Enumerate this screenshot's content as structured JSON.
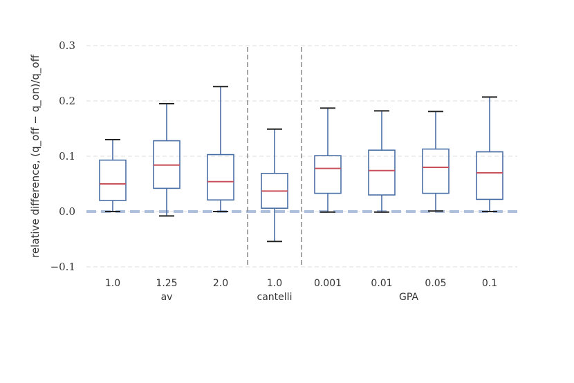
{
  "chart_data": {
    "type": "box",
    "title": "",
    "ylabel": "relative difference, (q_off − q_on)/q_off",
    "ylim": [
      -0.1,
      0.3
    ],
    "yticks": [
      -0.1,
      0.0,
      0.1,
      0.2,
      0.3
    ],
    "ytick_labels": [
      "−0.1",
      "0.0",
      "0.1",
      "0.2",
      "0.3"
    ],
    "grid": "horizontal-dashed",
    "reference_line": 0.0,
    "groups": [
      {
        "name": "av",
        "categories": [
          "1.0",
          "1.25",
          "2.0"
        ]
      },
      {
        "name": "cantelli",
        "categories": [
          "1.0"
        ]
      },
      {
        "name": "GPA",
        "categories": [
          "0.001",
          "0.01",
          "0.05",
          "0.1"
        ]
      }
    ],
    "boxes": [
      {
        "group": "av",
        "category": "1.0",
        "whisker_low": 0.0,
        "q1": 0.02,
        "median": 0.05,
        "q3": 0.093,
        "whisker_high": 0.13
      },
      {
        "group": "av",
        "category": "1.25",
        "whisker_low": -0.008,
        "q1": 0.042,
        "median": 0.084,
        "q3": 0.128,
        "whisker_high": 0.195
      },
      {
        "group": "av",
        "category": "2.0",
        "whisker_low": 0.0,
        "q1": 0.021,
        "median": 0.054,
        "q3": 0.103,
        "whisker_high": 0.226
      },
      {
        "group": "cantelli",
        "category": "1.0",
        "whisker_low": -0.054,
        "q1": 0.006,
        "median": 0.037,
        "q3": 0.069,
        "whisker_high": 0.149
      },
      {
        "group": "GPA",
        "category": "0.001",
        "whisker_low": -0.001,
        "q1": 0.033,
        "median": 0.078,
        "q3": 0.101,
        "whisker_high": 0.187
      },
      {
        "group": "GPA",
        "category": "0.01",
        "whisker_low": -0.001,
        "q1": 0.03,
        "median": 0.074,
        "q3": 0.111,
        "whisker_high": 0.182
      },
      {
        "group": "GPA",
        "category": "0.05",
        "whisker_low": 0.001,
        "q1": 0.033,
        "median": 0.08,
        "q3": 0.113,
        "whisker_high": 0.181
      },
      {
        "group": "GPA",
        "category": "0.1",
        "whisker_low": 0.0,
        "q1": 0.022,
        "median": 0.07,
        "q3": 0.108,
        "whisker_high": 0.207
      }
    ],
    "colors": {
      "box": "#4a6fa5",
      "median": "#c8505a",
      "whisker_cap": "#222222",
      "grid": "#dddddd",
      "separator": "#888888",
      "reference": "#aebfdc"
    }
  }
}
